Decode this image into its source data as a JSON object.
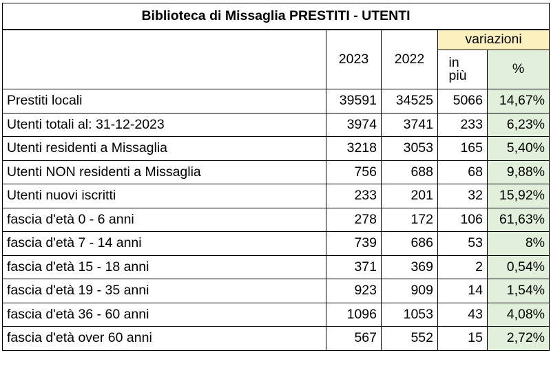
{
  "title": "Biblioteca di Missaglia PRESTITI - UTENTI",
  "headers": {
    "year1": "2023",
    "year2": "2022",
    "variazioni": "variazioni",
    "in_piu": "in più",
    "pct": "%"
  },
  "colors": {
    "variazioni_bg": "#fdf0bf",
    "pct_bg": "#e2efda"
  },
  "rows": [
    {
      "label": "Prestiti locali",
      "y2023": "39591",
      "y2022": "34525",
      "diff": "5066",
      "pct": "14,67%"
    },
    {
      "label": "Utenti totali al: 31-12-2023",
      "y2023": "3974",
      "y2022": "3741",
      "diff": "233",
      "pct": "6,23%"
    },
    {
      "label": "Utenti residenti a Missaglia",
      "y2023": "3218",
      "y2022": "3053",
      "diff": "165",
      "pct": "5,40%"
    },
    {
      "label": "Utenti NON residenti a Missaglia",
      "y2023": "756",
      "y2022": "688",
      "diff": "68",
      "pct": "9,88%"
    },
    {
      "label": "Utenti nuovi iscritti",
      "y2023": "233",
      "y2022": "201",
      "diff": "32",
      "pct": "15,92%"
    },
    {
      "label": "fascia d'età 0 - 6 anni",
      "y2023": "278",
      "y2022": "172",
      "diff": "106",
      "pct": "61,63%"
    },
    {
      "label": "fascia d'età 7 - 14 anni",
      "y2023": "739",
      "y2022": "686",
      "diff": "53",
      "pct": "8%"
    },
    {
      "label": "fascia d'età 15 - 18 anni",
      "y2023": "371",
      "y2022": "369",
      "diff": "2",
      "pct": "0,54%"
    },
    {
      "label": "fascia d'età 19 - 35 anni",
      "y2023": "923",
      "y2022": "909",
      "diff": "14",
      "pct": "1,54%"
    },
    {
      "label": "fascia d'età 36 - 60 anni",
      "y2023": "1096",
      "y2022": "1053",
      "diff": "43",
      "pct": "4,08%"
    },
    {
      "label": "fascia d'età over 60 anni",
      "y2023": "567",
      "y2022": "552",
      "diff": "15",
      "pct": "2,72%"
    }
  ]
}
